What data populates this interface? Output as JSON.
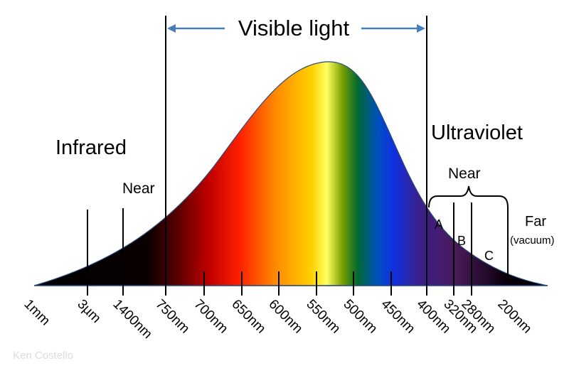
{
  "title": "Visible light",
  "regions": {
    "infrared": "Infrared",
    "infrared_near": "Near",
    "ultraviolet": "Ultraviolet",
    "uv_near": "Near",
    "uv_a": "A",
    "uv_b": "B",
    "uv_c": "C",
    "far": "Far",
    "vacuum": "(vacuum)"
  },
  "wavelength_labels": [
    "1mm",
    "3µm",
    "1400nm",
    "750nm",
    "700nm",
    "650nm",
    "600nm",
    "550nm",
    "500nm",
    "450nm",
    "400nm",
    "320nm",
    "280nm",
    "200nm"
  ],
  "credit": "Ken Costello"
}
